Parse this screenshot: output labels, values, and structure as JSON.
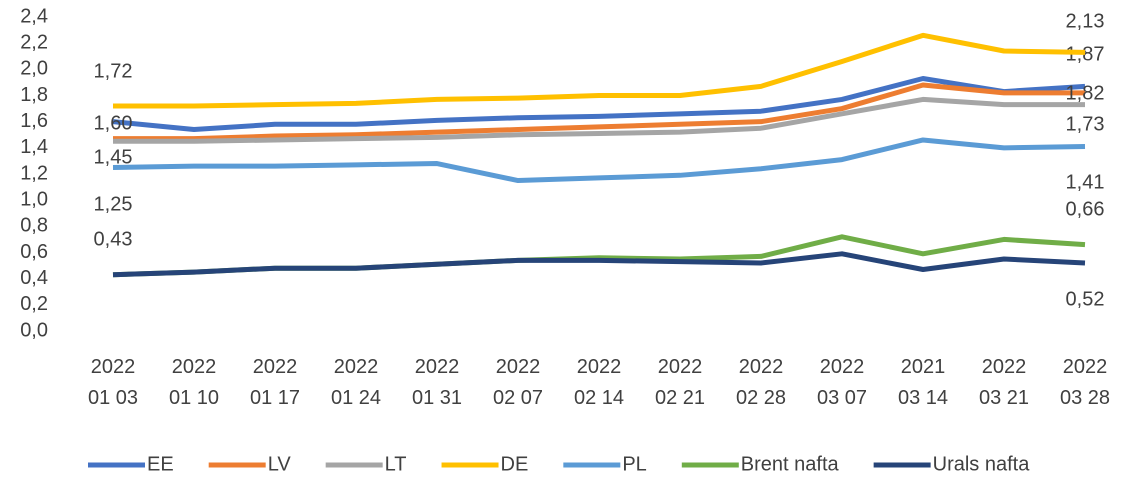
{
  "chart_data": {
    "type": "line",
    "categories": [
      "2022 01 03",
      "2022 01 10",
      "2022 01 17",
      "2022 01 24",
      "2022 01 31",
      "2022 02 07",
      "2022 02 14",
      "2022 02 21",
      "2022 02 28",
      "2022 03 07",
      "2021 03 14",
      "2022 03 21",
      "2022 03 28"
    ],
    "series": [
      {
        "name": "EE",
        "color": "#4472c4",
        "values": [
          1.6,
          1.54,
          1.58,
          1.58,
          1.61,
          1.63,
          1.64,
          1.66,
          1.68,
          1.77,
          1.93,
          1.83,
          1.87
        ],
        "value_labels": [
          "1,60",
          null,
          null,
          null,
          null,
          null,
          null,
          null,
          null,
          null,
          null,
          null,
          "1,87"
        ]
      },
      {
        "name": "LV",
        "color": "#ed7d31",
        "values": [
          1.47,
          1.47,
          1.49,
          1.5,
          1.52,
          1.54,
          1.56,
          1.58,
          1.6,
          1.7,
          1.88,
          1.82,
          1.82
        ],
        "value_labels": [
          null,
          null,
          null,
          null,
          null,
          null,
          null,
          null,
          null,
          null,
          null,
          null,
          "1,82"
        ]
      },
      {
        "name": "LT",
        "color": "#a5a5a5",
        "values": [
          1.45,
          1.45,
          1.46,
          1.47,
          1.48,
          1.5,
          1.51,
          1.52,
          1.55,
          1.66,
          1.77,
          1.73,
          1.73
        ],
        "value_labels": [
          "1,45",
          null,
          null,
          null,
          null,
          null,
          null,
          null,
          null,
          null,
          null,
          null,
          "1,73"
        ]
      },
      {
        "name": "DE",
        "color": "#ffc000",
        "values": [
          1.72,
          1.72,
          1.73,
          1.74,
          1.77,
          1.78,
          1.8,
          1.8,
          1.87,
          2.06,
          2.26,
          2.14,
          2.13
        ],
        "value_labels": [
          "1,72",
          null,
          null,
          null,
          null,
          null,
          null,
          null,
          null,
          null,
          null,
          null,
          "2,13"
        ]
      },
      {
        "name": "PL",
        "color": "#5b9bd5",
        "values": [
          1.25,
          1.26,
          1.26,
          1.27,
          1.28,
          1.15,
          1.17,
          1.19,
          1.24,
          1.31,
          1.46,
          1.4,
          1.41
        ],
        "value_labels": [
          "1,25",
          null,
          null,
          null,
          null,
          null,
          null,
          null,
          null,
          null,
          null,
          null,
          "1,41"
        ]
      },
      {
        "name": "Brent nafta",
        "color": "#70ad47",
        "values": [
          0.43,
          0.45,
          0.48,
          0.48,
          0.51,
          0.54,
          0.56,
          0.55,
          0.57,
          0.72,
          0.59,
          0.7,
          0.66
        ],
        "value_labels": [
          null,
          null,
          null,
          null,
          null,
          null,
          null,
          null,
          null,
          null,
          null,
          null,
          "0,66"
        ]
      },
      {
        "name": "Urals nafta",
        "color": "#264478",
        "values": [
          0.43,
          0.45,
          0.48,
          0.48,
          0.51,
          0.54,
          0.54,
          0.53,
          0.52,
          0.59,
          0.47,
          0.55,
          0.52
        ],
        "value_labels": [
          "0,43",
          null,
          null,
          null,
          null,
          null,
          null,
          null,
          null,
          null,
          null,
          null,
          "0,52"
        ]
      }
    ],
    "ylim": [
      0,
      2.4
    ],
    "yticks": [
      {
        "value": 0,
        "label": "0,0"
      },
      {
        "value": 0.2,
        "label": "0,2"
      },
      {
        "value": 0.4,
        "label": "0,4"
      },
      {
        "value": 0.6,
        "label": "0,6"
      },
      {
        "value": 0.8,
        "label": "0,8"
      },
      {
        "value": 1.0,
        "label": "1,0"
      },
      {
        "value": 1.2,
        "label": "1,2"
      },
      {
        "value": 1.4,
        "label": "1,4"
      },
      {
        "value": 1.6,
        "label": "1,6"
      },
      {
        "value": 1.8,
        "label": "1,8"
      },
      {
        "value": 2.0,
        "label": "2,0"
      },
      {
        "value": 2.2,
        "label": "2,2"
      },
      {
        "value": 2.4,
        "label": "2,4"
      }
    ],
    "legend": "bottom"
  }
}
